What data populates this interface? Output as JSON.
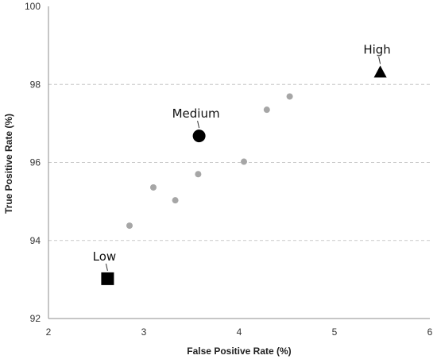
{
  "chart_data": {
    "type": "scatter",
    "xlabel": "False Positive Rate (%)",
    "ylabel": "True Positive Rate (%)",
    "xlim": [
      2,
      6
    ],
    "ylim": [
      92,
      100
    ],
    "x_ticks": [
      2,
      3,
      4,
      5,
      6
    ],
    "y_ticks": [
      92,
      94,
      96,
      98,
      100
    ],
    "grid": "horizontal dashed",
    "colors": {
      "points": "#a6a6a6",
      "highlight": "#000000",
      "grid": "#c8c8c8",
      "axis": "#8c8c8c"
    },
    "points": [
      {
        "x": 2.85,
        "y": 94.38
      },
      {
        "x": 3.1,
        "y": 95.36
      },
      {
        "x": 3.33,
        "y": 95.03
      },
      {
        "x": 3.57,
        "y": 95.7
      },
      {
        "x": 4.05,
        "y": 96.02
      },
      {
        "x": 4.29,
        "y": 97.35
      },
      {
        "x": 4.53,
        "y": 97.69
      }
    ],
    "highlighted": [
      {
        "label": "Low",
        "x": 2.62,
        "y": 93.02,
        "marker": "square"
      },
      {
        "label": "Medium",
        "x": 3.58,
        "y": 96.68,
        "marker": "circle"
      },
      {
        "label": "High",
        "x": 5.48,
        "y": 98.32,
        "marker": "triangle"
      }
    ]
  }
}
